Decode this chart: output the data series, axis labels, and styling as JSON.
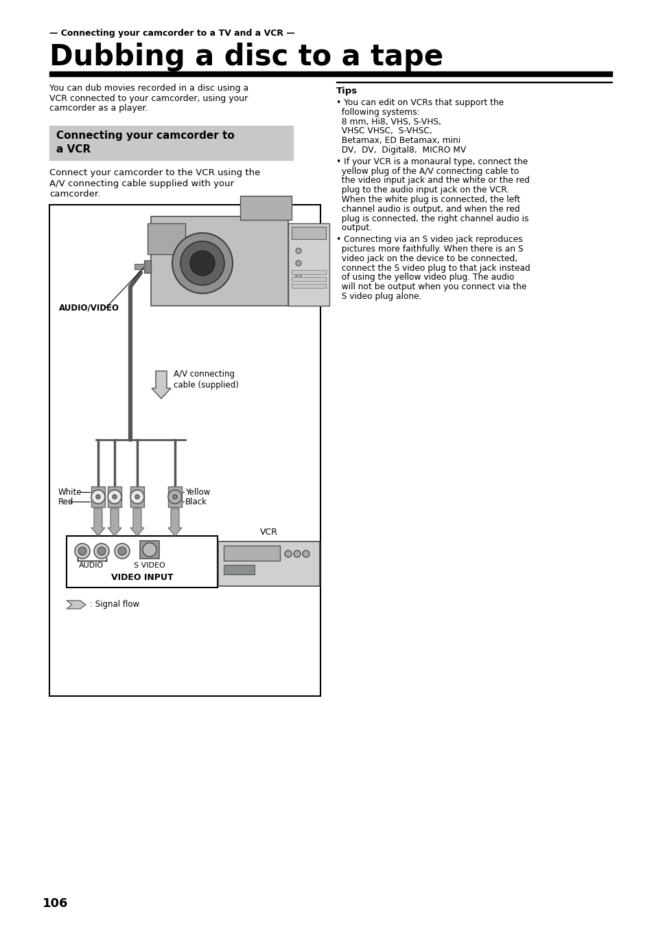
{
  "page_number": "106",
  "section_header": "— Connecting your camcorder to a TV and a VCR —",
  "title": "Dubbing a disc to a tape",
  "body_text_left_lines": [
    "You can dub movies recorded in a disc using a",
    "VCR connected to your camcorder, using your",
    "camcorder as a player."
  ],
  "subheading_line1": "Connecting your camcorder to",
  "subheading_line2": "a VCR",
  "subheading_desc_lines": [
    "Connect your camcorder to the VCR using the",
    "A/V connecting cable supplied with your",
    "camcorder."
  ],
  "tips_title": "Tips",
  "tip1_lines": [
    "• You can edit on VCRs that support the",
    "  following systems:",
    "  8 mm, Hi8, VHS, S-VHS,",
    "  VHSC VHSC,  S-VHSC,",
    "  Betamax, ED Betamax, mini",
    "  DV,  DV,  Digital8,  MICRO MV"
  ],
  "tip2_lines": [
    "• If your VCR is a monaural type, connect the",
    "  yellow plug of the A/V connecting cable to",
    "  the video input jack and the white or the red",
    "  plug to the audio input jack on the VCR.",
    "  When the white plug is connected, the left",
    "  channel audio is output, and when the red",
    "  plug is connected, the right channel audio is",
    "  output."
  ],
  "tip3_lines": [
    "• Connecting via an S video jack reproduces",
    "  pictures more faithfully. When there is an S",
    "  video jack on the device to be connected,",
    "  connect the S video plug to that jack instead",
    "  of using the yellow video plug. The audio",
    "  will not be output when you connect via the",
    "  S video plug alone."
  ],
  "label_audio_video": "AUDIO/VIDEO",
  "label_av_cable_line1": "A/V connecting",
  "label_av_cable_line2": "cable (supplied)",
  "label_white": "White",
  "label_red": "Red",
  "label_yellow": "Yellow",
  "label_black": "Black",
  "label_vcr": "VCR",
  "label_audio": "AUDIO",
  "label_s_video": "S VIDEO",
  "label_video_input": "VIDEO INPUT",
  "label_signal_flow": ": Signal flow",
  "bg_color": "#ffffff",
  "subheading_bg": "#c8c8c8",
  "subheading_fg": "#000000",
  "text_color": "#000000",
  "cable_color": "#555555",
  "arrow_color": "#888888"
}
